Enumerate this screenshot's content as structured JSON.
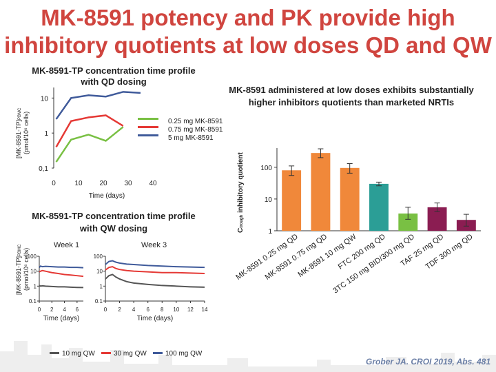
{
  "slide": {
    "title_line1": "MK-8591 potency and PK provide high",
    "title_line2": "inhibitory quotients at low doses QD and QW",
    "citation": "Grober JA. CROI 2019, Abs. 481"
  },
  "colors": {
    "title": "#d0453f",
    "dark_blue": "#3f5a9a",
    "maroon": "#8b1d52",
    "orange": "#f0883a",
    "teal": "#2b9e96",
    "green": "#79c043",
    "red": "#e53935",
    "gray": "#555555"
  },
  "qd_chart": {
    "title_line1": "MK-8591-TP concentration time profile",
    "title_line2": "with QD dosing",
    "y_label": "[MK-8591-TP]",
    "y_label_sub": "PBMC",
    "y_units": "(pmol/10⁶ cells)",
    "x_label": "Time (days)",
    "x_ticks": [
      "0",
      "10",
      "20",
      "30",
      "40"
    ],
    "y_ticks": [
      "0,1",
      "1",
      "10"
    ],
    "legend": [
      "0.25 mg MK-8591",
      "0.75 mg MK-8591",
      "5 mg MK-8591"
    ]
  },
  "qw_chart": {
    "title_line1": "MK-8591-TP concentration time profile",
    "title_line2": "with QW dosing",
    "week1_label": "Week 1",
    "week3_label": "Week 3",
    "y_label": "[MK-8591-TP]",
    "y_label_sub": "PBMC",
    "y_units": "(pmol/10⁶ cells)",
    "y_ticks": [
      "0.1",
      "1",
      "10",
      "100"
    ],
    "x_ticks_week1": [
      "0",
      "2",
      "4",
      "6"
    ],
    "x_ticks_week3": [
      "0",
      "2",
      "4",
      "6",
      "8",
      "10",
      "12",
      "14"
    ],
    "x_label_week1": "Time (days)",
    "x_label_week3": "Time (days)",
    "legend": [
      "10 mg QW",
      "30 mg QW",
      "100 mg QW"
    ]
  },
  "bar_chart": {
    "title_line1": "MK-8591 administered at low doses exhibits substantially",
    "title_line2": "higher inhibitors quotients than marketed NRTIs",
    "y_label": "inhibitory quotient",
    "y_label_prefix": "C",
    "y_label_sub": "trough",
    "y_ticks": [
      "1",
      "10",
      "100"
    ]
  },
  "chart_data": [
    {
      "type": "line",
      "title": "MK-8591-TP concentration time profile with QD dosing",
      "xlabel": "Time (days)",
      "ylabel": "[MK-8591-TP]PBMC (pmol/10⁶ cells)",
      "yscale": "log",
      "xlim": [
        0,
        40
      ],
      "ylim": [
        0.1,
        20
      ],
      "series": [
        {
          "name": "0.25 mg MK-8591",
          "color": "#79c043",
          "x": [
            1,
            7,
            14,
            21,
            28
          ],
          "y": [
            0.15,
            0.65,
            0.9,
            0.6,
            1.5
          ]
        },
        {
          "name": "0.75 mg MK-8591",
          "color": "#e53935",
          "x": [
            1,
            7,
            14,
            21,
            28
          ],
          "y": [
            0.4,
            2.2,
            2.8,
            3.2,
            1.6
          ]
        },
        {
          "name": "5 mg MK-8591",
          "color": "#3f5a9a",
          "x": [
            1,
            7,
            14,
            21,
            28,
            35
          ],
          "y": [
            2.5,
            10,
            12,
            11,
            15,
            14
          ]
        }
      ]
    },
    {
      "type": "line",
      "title": "Week 1",
      "xlabel": "Time (days)",
      "yscale": "log",
      "xlim": [
        0,
        7
      ],
      "ylim": [
        0.1,
        100
      ],
      "series": [
        {
          "name": "10 mg QW",
          "color": "#555555",
          "x": [
            0,
            0.2,
            0.5,
            1,
            2,
            3,
            4,
            5,
            6,
            7
          ],
          "y": [
            1.1,
            1.0,
            1.05,
            1.0,
            0.95,
            0.9,
            0.9,
            0.85,
            0.82,
            0.8
          ]
        },
        {
          "name": "30 mg QW",
          "color": "#e53935",
          "x": [
            0,
            0.2,
            0.5,
            1,
            2,
            3,
            4,
            5,
            6,
            7
          ],
          "y": [
            9,
            10,
            11,
            10,
            8,
            7,
            6,
            5.5,
            5,
            4.5
          ]
        },
        {
          "name": "100 mg QW",
          "color": "#3f5a9a",
          "x": [
            0,
            0.2,
            0.5,
            1,
            2,
            3,
            4,
            5,
            6,
            7
          ],
          "y": [
            18,
            22,
            20,
            21,
            20,
            19,
            19,
            18,
            18,
            17
          ]
        }
      ]
    },
    {
      "type": "line",
      "title": "Week 3",
      "xlabel": "Time (days)",
      "yscale": "log",
      "xlim": [
        0,
        14
      ],
      "ylim": [
        0.1,
        100
      ],
      "series": [
        {
          "name": "10 mg QW",
          "color": "#555555",
          "x": [
            0,
            0.5,
            1,
            1.5,
            2,
            3,
            4,
            6,
            8,
            10,
            12,
            14
          ],
          "y": [
            3,
            5,
            6,
            4,
            3,
            2,
            1.6,
            1.3,
            1.1,
            1.0,
            0.9,
            0.85
          ]
        },
        {
          "name": "30 mg QW",
          "color": "#e53935",
          "x": [
            0,
            0.5,
            1,
            1.5,
            2,
            3,
            4,
            6,
            8,
            10,
            12,
            14
          ],
          "y": [
            12,
            18,
            20,
            15,
            13,
            11,
            10,
            9,
            8,
            8,
            7.5,
            7
          ]
        },
        {
          "name": "100 mg QW",
          "color": "#3f5a9a",
          "x": [
            0,
            0.5,
            1,
            1.5,
            2,
            3,
            4,
            6,
            8,
            10,
            12,
            14
          ],
          "y": [
            28,
            45,
            50,
            40,
            35,
            30,
            28,
            24,
            22,
            20,
            19,
            18
          ]
        }
      ]
    },
    {
      "type": "bar",
      "title": "MK-8591 administered at low doses exhibits substantially higher inhibitors quotients than marketed NRTIs",
      "ylabel": "Ctrough inhibitory quotient",
      "yscale": "log",
      "ylim": [
        1,
        400
      ],
      "categories": [
        "MK-8591 0.25 mg QD",
        "MK-8591 0.75 mg QD",
        "MK-8591 10 mg QW",
        "FTC 200 mg QD",
        "3TC 150 mg BID/300 mg QD",
        "TAF 25 mg QD",
        "TDF 300 mg QD"
      ],
      "values": [
        80,
        280,
        95,
        30,
        3.5,
        5.5,
        2.2
      ],
      "errors": [
        [
          55,
          110
        ],
        [
          200,
          380
        ],
        [
          65,
          130
        ],
        [
          26,
          34
        ],
        [
          2.3,
          5.5
        ],
        [
          4,
          7.5
        ],
        [
          1.4,
          3.3
        ]
      ],
      "colors": [
        "#f0883a",
        "#f0883a",
        "#f0883a",
        "#2b9e96",
        "#79c043",
        "#8b1d52",
        "#8b1d52"
      ]
    }
  ]
}
